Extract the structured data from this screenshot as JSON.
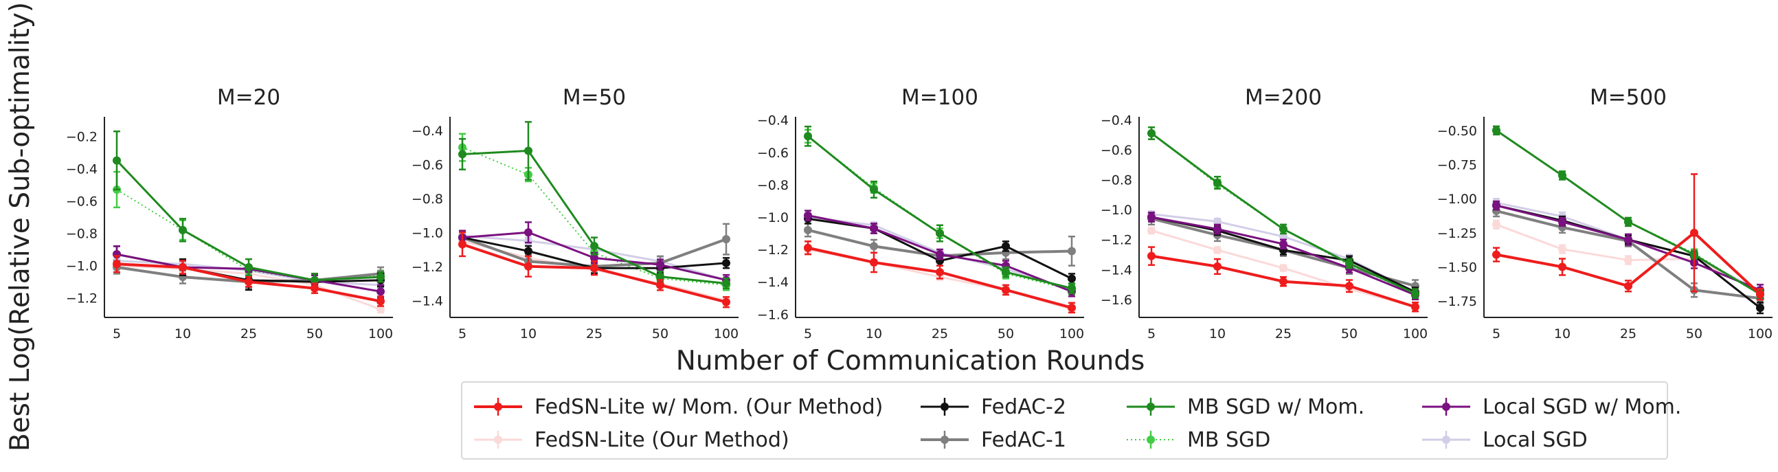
{
  "figure": {
    "ylabel": "Best Log(Relative Sub-optimality)",
    "xlabel": "Number of Communication Rounds"
  },
  "legend": {
    "entries": [
      {
        "key": "fedsn_lite_mom",
        "label": "FedSN-Lite w/ Mom. (Our Method)"
      },
      {
        "key": "fedac2",
        "label": "FedAC-2"
      },
      {
        "key": "mbsgd_mom",
        "label": "MB SGD w/ Mom."
      },
      {
        "key": "localsgd_mom",
        "label": "Local SGD w/ Mom."
      },
      {
        "key": "fedsn_lite",
        "label": "FedSN-Lite (Our Method)"
      },
      {
        "key": "fedac1",
        "label": "FedAC-1"
      },
      {
        "key": "mbsgd",
        "label": "MB SGD"
      },
      {
        "key": "localsgd",
        "label": "Local SGD"
      }
    ]
  },
  "series_styles": {
    "fedsn_lite_mom": {
      "color": "#ee1c1c",
      "alpha": 1.0,
      "dash": "",
      "width": 4
    },
    "fedsn_lite": {
      "color": "#f8b4b4",
      "alpha": 0.5,
      "dash": "",
      "width": 3
    },
    "fedac2": {
      "color": "#111111",
      "alpha": 1.0,
      "dash": "",
      "width": 3
    },
    "fedac1": {
      "color": "#7f7f7f",
      "alpha": 1.0,
      "dash": "",
      "width": 4
    },
    "mbsgd_mom": {
      "color": "#1f8a1f",
      "alpha": 1.0,
      "dash": "",
      "width": 3
    },
    "mbsgd": {
      "color": "#44cc44",
      "alpha": 1.0,
      "dash": "2,4",
      "width": 2
    },
    "localsgd_mom": {
      "color": "#7a1180",
      "alpha": 1.0,
      "dash": "",
      "width": 3
    },
    "localsgd": {
      "color": "#c7c3e2",
      "alpha": 0.8,
      "dash": "",
      "width": 3
    }
  },
  "chart_data": [
    {
      "type": "line",
      "title": "M=20",
      "categories": [
        "5",
        "10",
        "25",
        "50",
        "100"
      ],
      "ylim": [
        -1.32,
        -0.08
      ],
      "yticks": [
        -1.2,
        -1.0,
        -0.8,
        -0.6,
        -0.4,
        -0.2
      ],
      "ytick_labels": [
        "−1.2",
        "−1.0",
        "−0.8",
        "−0.6",
        "−0.4",
        "−0.2"
      ],
      "series": [
        {
          "key": "fedsn_lite",
          "values": [
            -1.0,
            -1.02,
            -1.05,
            -1.12,
            -1.27
          ],
          "err": [
            0.02,
            0.02,
            0.02,
            0.02,
            0.02
          ]
        },
        {
          "key": "localsgd",
          "values": [
            -0.97,
            -0.99,
            -1.03,
            -1.1,
            -1.12
          ],
          "err": [
            0.02,
            0.02,
            0.02,
            0.02,
            0.02
          ]
        },
        {
          "key": "mbsgd",
          "values": [
            -0.53,
            -0.78,
            -1.03,
            -1.09,
            -1.06
          ],
          "err": [
            0.11,
            0.06,
            0.03,
            0.03,
            0.03
          ]
        },
        {
          "key": "fedac1",
          "values": [
            -1.01,
            -1.07,
            -1.1,
            -1.09,
            -1.05
          ],
          "err": [
            0.04,
            0.04,
            0.04,
            0.04,
            0.04
          ]
        },
        {
          "key": "fedac2",
          "values": [
            -0.93,
            -1.01,
            -1.09,
            -1.1,
            -1.09
          ],
          "err": [
            0.05,
            0.05,
            0.06,
            0.05,
            0.04
          ]
        },
        {
          "key": "localsgd_mom",
          "values": [
            -0.93,
            -1.01,
            -1.02,
            -1.09,
            -1.16
          ],
          "err": [
            0.05,
            0.04,
            0.02,
            0.03,
            0.04
          ]
        },
        {
          "key": "mbsgd_mom",
          "values": [
            -0.35,
            -0.78,
            -1.01,
            -1.09,
            -1.07
          ],
          "err": [
            0.18,
            0.07,
            0.05,
            0.04,
            0.03
          ]
        },
        {
          "key": "fedsn_lite_mom",
          "values": [
            -0.99,
            -1.01,
            -1.1,
            -1.14,
            -1.22
          ],
          "err": [
            0.05,
            0.04,
            0.03,
            0.03,
            0.03
          ]
        }
      ]
    },
    {
      "type": "line",
      "title": "M=50",
      "categories": [
        "5",
        "10",
        "25",
        "50",
        "100"
      ],
      "ylim": [
        -1.5,
        -0.32
      ],
      "yticks": [
        -1.4,
        -1.2,
        -1.0,
        -0.8,
        -0.6,
        -0.4
      ],
      "ytick_labels": [
        "−1.4",
        "−1.2",
        "−1.0",
        "−0.8",
        "−0.6",
        "−0.4"
      ],
      "series": [
        {
          "key": "fedsn_lite",
          "values": [
            -1.05,
            -1.15,
            -1.22,
            -1.3,
            -1.4
          ],
          "err": [
            0.02,
            0.02,
            0.02,
            0.02,
            0.02
          ]
        },
        {
          "key": "localsgd",
          "values": [
            -1.02,
            -1.05,
            -1.1,
            -1.17,
            -1.28
          ],
          "err": [
            0.02,
            0.02,
            0.02,
            0.02,
            0.02
          ]
        },
        {
          "key": "mbsgd",
          "values": [
            -0.5,
            -0.66,
            -1.12,
            -1.27,
            -1.31
          ],
          "err": [
            0.08,
            0.04,
            0.03,
            0.03,
            0.03
          ]
        },
        {
          "key": "fedac1",
          "values": [
            -1.03,
            -1.17,
            -1.2,
            -1.18,
            -1.04
          ],
          "err": [
            0.04,
            0.04,
            0.04,
            0.04,
            0.09
          ]
        },
        {
          "key": "fedac2",
          "values": [
            -1.03,
            -1.11,
            -1.21,
            -1.21,
            -1.18
          ],
          "err": [
            0.04,
            0.03,
            0.03,
            0.03,
            0.03
          ]
        },
        {
          "key": "localsgd_mom",
          "values": [
            -1.03,
            -1.0,
            -1.15,
            -1.19,
            -1.28
          ],
          "err": [
            0.04,
            0.06,
            0.03,
            0.03,
            0.03
          ]
        },
        {
          "key": "mbsgd_mom",
          "values": [
            -0.54,
            -0.52,
            -1.08,
            -1.26,
            -1.3
          ],
          "err": [
            0.09,
            0.17,
            0.05,
            0.03,
            0.03
          ]
        },
        {
          "key": "fedsn_lite_mom",
          "values": [
            -1.07,
            -1.2,
            -1.21,
            -1.31,
            -1.41
          ],
          "err": [
            0.07,
            0.06,
            0.04,
            0.03,
            0.03
          ]
        }
      ]
    },
    {
      "type": "line",
      "title": "M=100",
      "categories": [
        "5",
        "10",
        "25",
        "50",
        "100"
      ],
      "ylim": [
        -1.62,
        -0.38
      ],
      "yticks": [
        -1.6,
        -1.4,
        -1.2,
        -1.0,
        -0.8,
        -0.6,
        -0.4
      ],
      "ytick_labels": [
        "−1.6",
        "−1.4",
        "−1.2",
        "−1.0",
        "−0.8",
        "−0.6",
        "−0.4"
      ],
      "series": [
        {
          "key": "fedsn_lite",
          "values": [
            -1.2,
            -1.28,
            -1.37,
            -1.45,
            -1.57
          ],
          "err": [
            0.02,
            0.02,
            0.02,
            0.02,
            0.02
          ]
        },
        {
          "key": "localsgd",
          "values": [
            -1.0,
            -1.05,
            -1.22,
            -1.32,
            -1.45
          ],
          "err": [
            0.02,
            0.02,
            0.02,
            0.02,
            0.02
          ]
        },
        {
          "key": "mbsgd",
          "values": [
            -0.5,
            -0.82,
            -1.1,
            -1.35,
            -1.45
          ],
          "err": [
            0.04,
            0.03,
            0.03,
            0.03,
            0.03
          ]
        },
        {
          "key": "fedac1",
          "values": [
            -1.08,
            -1.18,
            -1.24,
            -1.22,
            -1.21
          ],
          "err": [
            0.04,
            0.04,
            0.04,
            0.04,
            0.09
          ]
        },
        {
          "key": "fedac2",
          "values": [
            -1.01,
            -1.07,
            -1.27,
            -1.18,
            -1.38
          ],
          "err": [
            0.03,
            0.03,
            0.03,
            0.03,
            0.03
          ]
        },
        {
          "key": "localsgd_mom",
          "values": [
            -0.99,
            -1.07,
            -1.23,
            -1.3,
            -1.46
          ],
          "err": [
            0.03,
            0.03,
            0.03,
            0.03,
            0.03
          ]
        },
        {
          "key": "mbsgd_mom",
          "values": [
            -0.5,
            -0.83,
            -1.1,
            -1.34,
            -1.44
          ],
          "err": [
            0.06,
            0.05,
            0.05,
            0.03,
            0.03
          ]
        },
        {
          "key": "fedsn_lite_mom",
          "values": [
            -1.19,
            -1.28,
            -1.34,
            -1.45,
            -1.56
          ],
          "err": [
            0.04,
            0.06,
            0.04,
            0.03,
            0.03
          ]
        }
      ]
    },
    {
      "type": "line",
      "title": "M=200",
      "categories": [
        "5",
        "10",
        "25",
        "50",
        "100"
      ],
      "ylim": [
        -1.72,
        -0.38
      ],
      "yticks": [
        -1.6,
        -1.4,
        -1.2,
        -1.0,
        -0.8,
        -0.6,
        -0.4
      ],
      "ytick_labels": [
        "−1.6",
        "−1.4",
        "−1.2",
        "−1.0",
        "−0.8",
        "−0.6",
        "−0.4"
      ],
      "series": [
        {
          "key": "fedsn_lite",
          "values": [
            -1.14,
            -1.27,
            -1.39,
            -1.53,
            -1.65
          ],
          "err": [
            0.02,
            0.02,
            0.02,
            0.02,
            0.02
          ]
        },
        {
          "key": "localsgd",
          "values": [
            -1.03,
            -1.08,
            -1.18,
            -1.33,
            -1.55
          ],
          "err": [
            0.02,
            0.02,
            0.02,
            0.03,
            0.02
          ]
        },
        {
          "key": "mbsgd",
          "values": [
            -0.49,
            -0.83,
            -1.13,
            -1.37,
            -1.56
          ],
          "err": [
            0.04,
            0.03,
            0.03,
            0.03,
            0.03
          ]
        },
        {
          "key": "fedac1",
          "values": [
            -1.06,
            -1.17,
            -1.27,
            -1.39,
            -1.51
          ],
          "err": [
            0.04,
            0.04,
            0.04,
            0.04,
            0.04
          ]
        },
        {
          "key": "fedac2",
          "values": [
            -1.05,
            -1.14,
            -1.27,
            -1.34,
            -1.55
          ],
          "err": [
            0.03,
            0.03,
            0.03,
            0.03,
            0.03
          ]
        },
        {
          "key": "localsgd_mom",
          "values": [
            -1.05,
            -1.13,
            -1.23,
            -1.39,
            -1.57
          ],
          "err": [
            0.03,
            0.03,
            0.03,
            0.03,
            0.03
          ]
        },
        {
          "key": "mbsgd_mom",
          "values": [
            -0.49,
            -0.82,
            -1.13,
            -1.36,
            -1.56
          ],
          "err": [
            0.04,
            0.04,
            0.03,
            0.03,
            0.03
          ]
        },
        {
          "key": "fedsn_lite_mom",
          "values": [
            -1.31,
            -1.38,
            -1.48,
            -1.51,
            -1.65
          ],
          "err": [
            0.06,
            0.05,
            0.03,
            0.04,
            0.03
          ]
        }
      ]
    },
    {
      "type": "line",
      "title": "M=500",
      "categories": [
        "5",
        "10",
        "25",
        "50",
        "100"
      ],
      "ylim": [
        -1.87,
        -0.4
      ],
      "yticks": [
        -1.75,
        -1.5,
        -1.25,
        -1.0,
        -0.75,
        -0.5
      ],
      "ytick_labels": [
        "−1.75",
        "−1.50",
        "−1.25",
        "−1.00",
        "−0.75",
        "−0.50"
      ],
      "series": [
        {
          "key": "fedsn_lite",
          "values": [
            -1.19,
            -1.37,
            -1.45,
            -1.44,
            -1.68
          ],
          "err": [
            0.03,
            0.03,
            0.03,
            0.03,
            0.03
          ]
        },
        {
          "key": "localsgd",
          "values": [
            -1.03,
            -1.13,
            -1.3,
            -1.42,
            -1.68
          ],
          "err": [
            0.03,
            0.03,
            0.03,
            0.03,
            0.03
          ]
        },
        {
          "key": "mbsgd",
          "values": [
            -0.5,
            -0.83,
            -1.17,
            -1.4,
            -1.7
          ],
          "err": [
            0.03,
            0.03,
            0.03,
            0.03,
            0.03
          ]
        },
        {
          "key": "fedac1",
          "values": [
            -1.09,
            -1.21,
            -1.31,
            -1.67,
            -1.73
          ],
          "err": [
            0.04,
            0.04,
            0.04,
            0.05,
            0.04
          ]
        },
        {
          "key": "fedac2",
          "values": [
            -1.05,
            -1.16,
            -1.3,
            -1.42,
            -1.8
          ],
          "err": [
            0.03,
            0.03,
            0.03,
            0.03,
            0.04
          ]
        },
        {
          "key": "localsgd_mom",
          "values": [
            -1.05,
            -1.17,
            -1.3,
            -1.47,
            -1.67
          ],
          "err": [
            0.03,
            0.03,
            0.04,
            0.04,
            0.04
          ]
        },
        {
          "key": "mbsgd_mom",
          "values": [
            -0.5,
            -0.83,
            -1.17,
            -1.41,
            -1.7
          ],
          "err": [
            0.03,
            0.03,
            0.03,
            0.03,
            0.03
          ]
        },
        {
          "key": "fedsn_lite_mom",
          "values": [
            -1.41,
            -1.5,
            -1.64,
            -1.25,
            -1.7
          ],
          "err": [
            0.05,
            0.06,
            0.04,
            0.43,
            0.04
          ]
        }
      ]
    }
  ]
}
